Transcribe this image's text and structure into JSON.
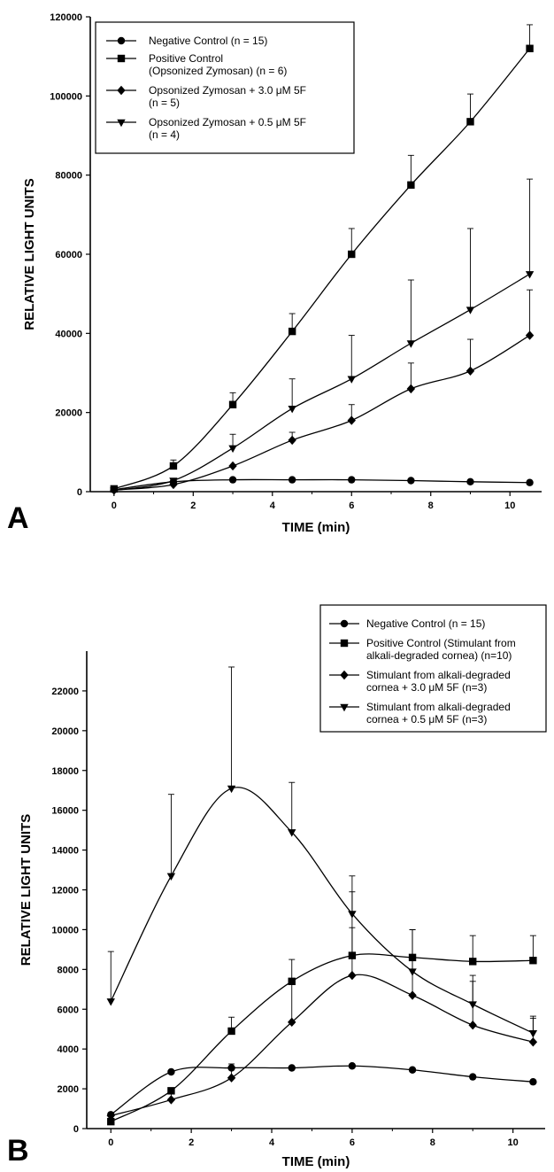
{
  "chart_data": [
    {
      "panel": "A",
      "type": "line",
      "xlabel": "TIME (min)",
      "ylabel": "RELATIVE LIGHT UNITS",
      "xlim": [
        -0.6,
        10.8
      ],
      "ylim": [
        0,
        120000
      ],
      "xticks": [
        0,
        2,
        4,
        6,
        8,
        10
      ],
      "yticks": [
        0,
        20000,
        40000,
        60000,
        80000,
        100000,
        120000
      ],
      "x": [
        0,
        1.5,
        3,
        4.5,
        6,
        7.5,
        9,
        10.5
      ],
      "legend_position": "top-left",
      "series": [
        {
          "name": "Negative Control  (n = 15)",
          "marker": "circle",
          "values": [
            500,
            2500,
            3000,
            3000,
            3000,
            2800,
            2500,
            2300
          ],
          "error": [
            0,
            0,
            0,
            0,
            0,
            0,
            0,
            0
          ]
        },
        {
          "name": "Positive Control\n(Opsonized Zymosan)  (n = 6)",
          "marker": "square",
          "values": [
            700,
            6500,
            22000,
            40500,
            60000,
            77500,
            93500,
            112000
          ],
          "error": [
            0,
            1500,
            3000,
            4500,
            6500,
            7500,
            7000,
            6000
          ]
        },
        {
          "name": "Opsonized Zymosan +  3.0 μM 5F\n(n = 5)",
          "marker": "diamond",
          "values": [
            400,
            1800,
            6500,
            13000,
            18000,
            26000,
            30500,
            39500
          ],
          "error": [
            0,
            0,
            0,
            2000,
            4000,
            6500,
            8000,
            11500
          ]
        },
        {
          "name": "Opsonized Zymosan +  0.5 μM 5F\n(n = 4)",
          "marker": "triangle-down",
          "values": [
            300,
            2800,
            11000,
            21000,
            28500,
            37500,
            46000,
            55000
          ],
          "error": [
            0,
            0,
            3500,
            7500,
            11000,
            16000,
            20500,
            24000
          ]
        }
      ]
    },
    {
      "panel": "B",
      "type": "line",
      "xlabel": "TIME (min)",
      "ylabel": "RELATIVE LIGHT UNITS",
      "xlim": [
        -0.6,
        10.8
      ],
      "ylim": [
        0,
        24000
      ],
      "xticks": [
        0,
        2,
        4,
        6,
        8,
        10
      ],
      "yticks": [
        0,
        2000,
        4000,
        6000,
        8000,
        10000,
        12000,
        14000,
        16000,
        18000,
        20000,
        22000
      ],
      "x": [
        0,
        1.5,
        3,
        4.5,
        6,
        7.5,
        9,
        10.5
      ],
      "legend_position": "top-right",
      "series": [
        {
          "name": "Negative Control  (n = 15)",
          "marker": "circle",
          "values": [
            700,
            2850,
            3050,
            3050,
            3150,
            2950,
            2600,
            2350
          ],
          "error": [
            0,
            0,
            0,
            0,
            0,
            0,
            0,
            0
          ]
        },
        {
          "name": "Positive Control (Stimulant from\nalkali-degraded cornea) (n=10)",
          "marker": "square",
          "values": [
            350,
            1900,
            4900,
            7400,
            8700,
            8600,
            8400,
            8450
          ],
          "error": [
            0,
            0,
            700,
            1100,
            1400,
            1400,
            1300,
            1250
          ]
        },
        {
          "name": "Stimulant from alkali-degraded\ncornea + 3.0 μM 5F (n=3)",
          "marker": "diamond",
          "values": [
            650,
            1450,
            2550,
            5350,
            7700,
            6700,
            5200,
            4350
          ],
          "error": [
            0,
            450,
            700,
            2000,
            4200,
            3300,
            2200,
            1300
          ]
        },
        {
          "name": "Stimulant from alkali-degraded\ncornea + 0.5 μM 5F (n=3)",
          "marker": "triangle-down",
          "values": [
            6400,
            12700,
            17100,
            14900,
            10800,
            7900,
            6250,
            4800
          ],
          "error": [
            2500,
            4100,
            6100,
            2500,
            1900,
            2100,
            1450,
            750
          ]
        }
      ]
    }
  ]
}
